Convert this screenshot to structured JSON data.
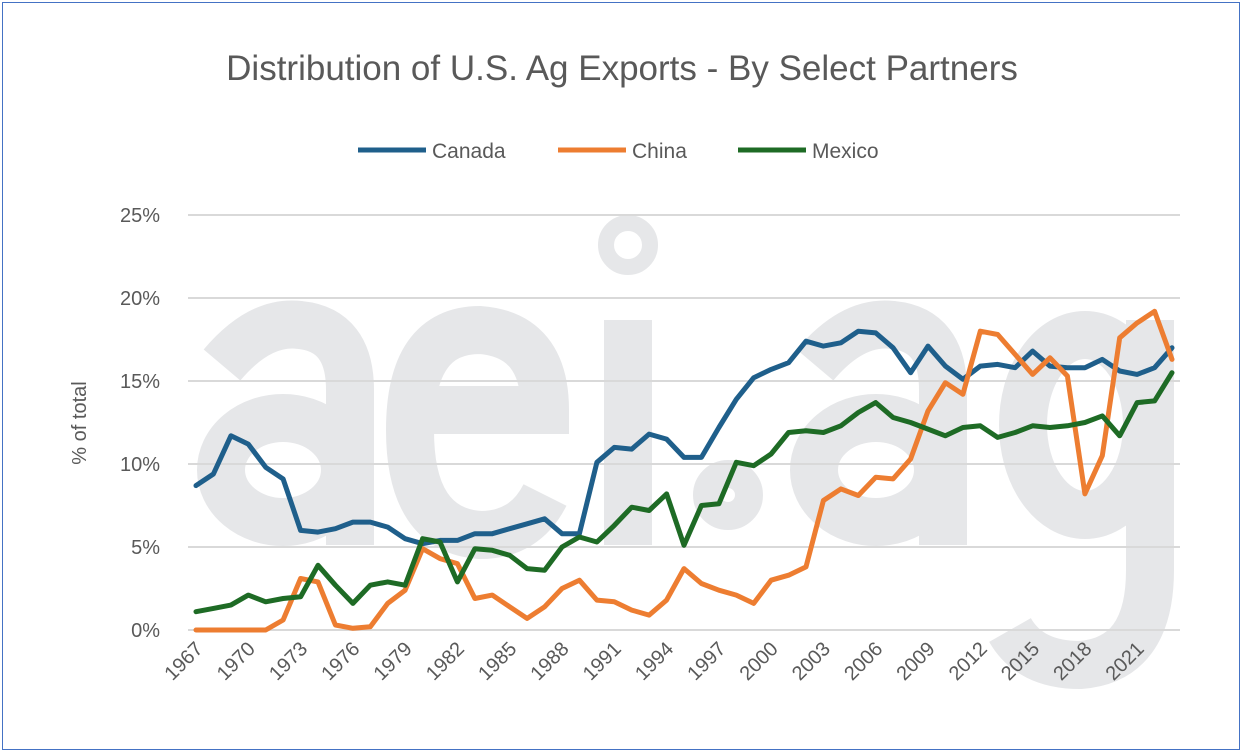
{
  "chart_data": {
    "type": "line",
    "title": "Distribution of U.S. Ag Exports - By Select Partners",
    "xlabel": "",
    "ylabel": "% of total",
    "ylim": [
      0,
      25
    ],
    "yticks": [
      "0%",
      "5%",
      "10%",
      "15%",
      "20%",
      "25%"
    ],
    "xticks": [
      "1967",
      "1970",
      "1973",
      "1976",
      "1979",
      "1982",
      "1985",
      "1988",
      "1991",
      "1994",
      "1997",
      "2000",
      "2003",
      "2006",
      "2009",
      "2012",
      "2015",
      "2018",
      "2021"
    ],
    "grid": true,
    "legend_position": "top",
    "watermark": "aei.ag",
    "x": [
      1967,
      1968,
      1969,
      1970,
      1971,
      1972,
      1973,
      1974,
      1975,
      1976,
      1977,
      1978,
      1979,
      1980,
      1981,
      1982,
      1983,
      1984,
      1985,
      1986,
      1987,
      1988,
      1989,
      1990,
      1991,
      1992,
      1993,
      1994,
      1995,
      1996,
      1997,
      1998,
      1999,
      2000,
      2001,
      2002,
      2003,
      2004,
      2005,
      2006,
      2007,
      2008,
      2009,
      2010,
      2011,
      2012,
      2013,
      2014,
      2015,
      2016,
      2017,
      2018,
      2019,
      2020,
      2021,
      2022,
      2023
    ],
    "series": [
      {
        "name": "Canada",
        "color": "#1f5f8b",
        "values": [
          8.7,
          9.4,
          11.7,
          11.2,
          9.8,
          9.1,
          6.0,
          5.9,
          6.1,
          6.5,
          6.5,
          6.2,
          5.5,
          5.2,
          5.4,
          5.4,
          5.8,
          5.8,
          6.1,
          6.4,
          6.7,
          5.8,
          5.8,
          10.1,
          11.0,
          10.9,
          11.8,
          11.5,
          10.4,
          10.4,
          12.2,
          13.9,
          15.2,
          15.7,
          16.1,
          17.4,
          17.1,
          17.3,
          18.0,
          17.9,
          17.0,
          15.5,
          17.1,
          15.9,
          15.1,
          15.9,
          16.0,
          15.8,
          16.8,
          15.9,
          15.8,
          15.8,
          16.3,
          15.6,
          15.4,
          15.8,
          17.0
        ]
      },
      {
        "name": "China",
        "color": "#ed7d31",
        "values": [
          0,
          0,
          0,
          0,
          0,
          0.6,
          3.1,
          2.9,
          0.3,
          0.1,
          0.2,
          1.6,
          2.4,
          4.9,
          4.3,
          4.0,
          1.9,
          2.1,
          1.4,
          0.7,
          1.4,
          2.5,
          3.0,
          1.8,
          1.7,
          1.2,
          0.9,
          1.8,
          3.7,
          2.8,
          2.4,
          2.1,
          1.6,
          3.0,
          3.3,
          3.8,
          7.8,
          8.5,
          8.1,
          9.2,
          9.1,
          10.3,
          13.2,
          14.9,
          14.2,
          18.0,
          17.8,
          16.6,
          15.4,
          16.4,
          15.3,
          8.2,
          10.5,
          17.6,
          18.5,
          19.2,
          16.3
        ]
      },
      {
        "name": "Mexico",
        "color": "#1e6b25",
        "values": [
          1.1,
          1.3,
          1.5,
          2.1,
          1.7,
          1.9,
          2.0,
          3.9,
          2.7,
          1.6,
          2.7,
          2.9,
          2.7,
          5.5,
          5.3,
          2.9,
          4.9,
          4.8,
          4.5,
          3.7,
          3.6,
          5.0,
          5.6,
          5.3,
          6.3,
          7.4,
          7.2,
          8.2,
          5.1,
          7.5,
          7.6,
          10.1,
          9.9,
          10.6,
          11.9,
          12.0,
          11.9,
          12.3,
          13.1,
          13.7,
          12.8,
          12.5,
          12.1,
          11.7,
          12.2,
          12.3,
          11.6,
          11.9,
          12.3,
          12.2,
          12.3,
          12.5,
          12.9,
          11.7,
          13.7,
          13.8,
          15.5
        ]
      }
    ]
  }
}
